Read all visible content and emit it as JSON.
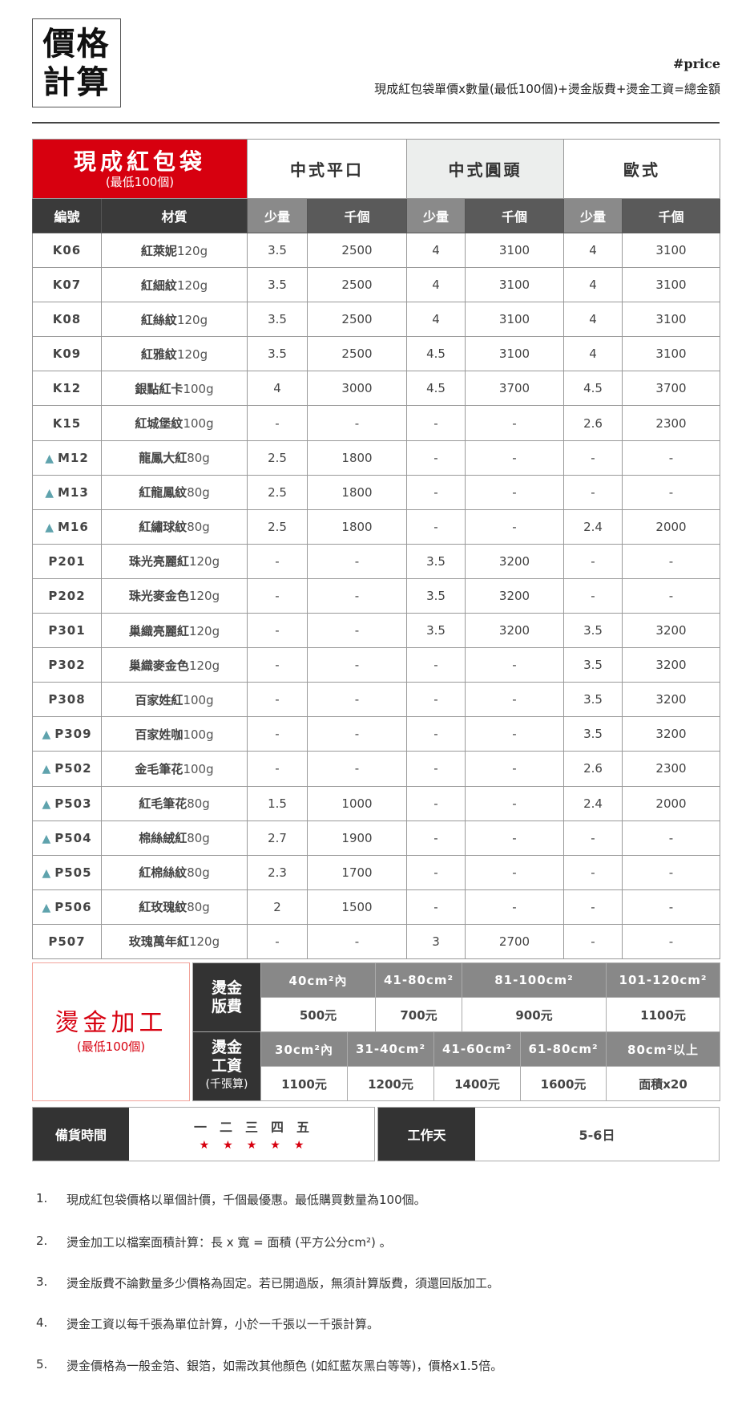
{
  "header": {
    "title_line1": "價格",
    "title_line2": "計算",
    "tag": "#price",
    "formula": "現成紅包袋單價x數量(最低100個)+燙金版費+燙金工資=總金額"
  },
  "price_table": {
    "product": "現成紅包袋",
    "product_min": "(最低100個)",
    "styles": [
      "中式平口",
      "中式圓頭",
      "歐式"
    ],
    "columns": {
      "code": "編號",
      "material": "材質",
      "small": "少量",
      "thousand": "千個"
    },
    "marker_color": "#5fa3ad",
    "rows": [
      {
        "code": "K06",
        "marked": false,
        "name": "紅萊妮",
        "weight": "120g",
        "v": [
          "3.5",
          "2500",
          "4",
          "3100",
          "4",
          "3100"
        ]
      },
      {
        "code": "K07",
        "marked": false,
        "name": "紅細紋",
        "weight": "120g",
        "v": [
          "3.5",
          "2500",
          "4",
          "3100",
          "4",
          "3100"
        ]
      },
      {
        "code": "K08",
        "marked": false,
        "name": "紅絲紋",
        "weight": "120g",
        "v": [
          "3.5",
          "2500",
          "4",
          "3100",
          "4",
          "3100"
        ]
      },
      {
        "code": "K09",
        "marked": false,
        "name": "紅雅紋",
        "weight": "120g",
        "v": [
          "3.5",
          "2500",
          "4.5",
          "3100",
          "4",
          "3100"
        ]
      },
      {
        "code": "K12",
        "marked": false,
        "name": "銀點紅卡",
        "weight": "100g",
        "v": [
          "4",
          "3000",
          "4.5",
          "3700",
          "4.5",
          "3700"
        ]
      },
      {
        "code": "K15",
        "marked": false,
        "name": "紅城堡紋",
        "weight": "100g",
        "v": [
          "-",
          "-",
          "-",
          "-",
          "2.6",
          "2300"
        ]
      },
      {
        "code": "M12",
        "marked": true,
        "name": "龍鳳大紅",
        "weight": "80g",
        "v": [
          "2.5",
          "1800",
          "-",
          "-",
          "-",
          "-"
        ]
      },
      {
        "code": "M13",
        "marked": true,
        "name": "紅龍鳳紋",
        "weight": "80g",
        "v": [
          "2.5",
          "1800",
          "-",
          "-",
          "-",
          "-"
        ]
      },
      {
        "code": "M16",
        "marked": true,
        "name": "紅繡球紋",
        "weight": "80g",
        "v": [
          "2.5",
          "1800",
          "-",
          "-",
          "2.4",
          "2000"
        ]
      },
      {
        "code": "P201",
        "marked": false,
        "name": "珠光亮麗紅",
        "weight": "120g",
        "v": [
          "-",
          "-",
          "3.5",
          "3200",
          "-",
          "-"
        ]
      },
      {
        "code": "P202",
        "marked": false,
        "name": "珠光麥金色",
        "weight": "120g",
        "v": [
          "-",
          "-",
          "3.5",
          "3200",
          "-",
          "-"
        ]
      },
      {
        "code": "P301",
        "marked": false,
        "name": "巢織亮麗紅",
        "weight": "120g",
        "v": [
          "-",
          "-",
          "3.5",
          "3200",
          "3.5",
          "3200"
        ]
      },
      {
        "code": "P302",
        "marked": false,
        "name": "巢織麥金色",
        "weight": "120g",
        "v": [
          "-",
          "-",
          "-",
          "-",
          "3.5",
          "3200"
        ]
      },
      {
        "code": "P308",
        "marked": false,
        "name": "百家姓紅",
        "weight": "100g",
        "v": [
          "-",
          "-",
          "-",
          "-",
          "3.5",
          "3200"
        ]
      },
      {
        "code": "P309",
        "marked": true,
        "name": "百家姓咖",
        "weight": "100g",
        "v": [
          "-",
          "-",
          "-",
          "-",
          "3.5",
          "3200"
        ]
      },
      {
        "code": "P502",
        "marked": true,
        "name": "金毛筆花",
        "weight": "100g",
        "v": [
          "-",
          "-",
          "-",
          "-",
          "2.6",
          "2300"
        ]
      },
      {
        "code": "P503",
        "marked": true,
        "name": "紅毛筆花",
        "weight": "80g",
        "v": [
          "1.5",
          "1000",
          "-",
          "-",
          "2.4",
          "2000"
        ]
      },
      {
        "code": "P504",
        "marked": true,
        "name": "棉絲絨紅",
        "weight": "80g",
        "v": [
          "2.7",
          "1900",
          "-",
          "-",
          "-",
          "-"
        ]
      },
      {
        "code": "P505",
        "marked": true,
        "name": "紅棉絲紋",
        "weight": "80g",
        "v": [
          "2.3",
          "1700",
          "-",
          "-",
          "-",
          "-"
        ]
      },
      {
        "code": "P506",
        "marked": true,
        "name": "紅玫瑰紋",
        "weight": "80g",
        "v": [
          "2",
          "1500",
          "-",
          "-",
          "-",
          "-"
        ]
      },
      {
        "code": "P507",
        "marked": false,
        "name": "玫瑰萬年紅",
        "weight": "120g",
        "v": [
          "-",
          "-",
          "3",
          "2700",
          "-",
          "-"
        ]
      }
    ]
  },
  "foil": {
    "title": "燙金加工",
    "min": "(最低100個)",
    "plate": {
      "label1": "燙金",
      "label2": "版費",
      "sizes": [
        "40cm²內",
        "41-80cm²",
        "81-100cm²",
        "101-120cm²"
      ],
      "prices": [
        "500元",
        "700元",
        "900元",
        "1100元"
      ]
    },
    "labor": {
      "label1": "燙金",
      "label2": "工資",
      "note": "(千張算)",
      "sizes": [
        "30cm²內",
        "31-40cm²",
        "41-60cm²",
        "61-80cm²",
        "80cm²以上"
      ],
      "prices": [
        "1100元",
        "1200元",
        "1400元",
        "1600元",
        "面積x20"
      ]
    }
  },
  "stock": {
    "label": "備貨時間",
    "days": [
      "一",
      "二",
      "三",
      "四",
      "五"
    ],
    "workday_label": "工作天",
    "workday_value": "5-6日"
  },
  "notes": [
    {
      "n": "1.",
      "text": "現成紅包袋價格以單個計價，千個最優惠。最低購買數量為100個。"
    },
    {
      "n": "2.",
      "text": "燙金加工以檔案面積計算：長 x 寬 = 面積 (平方公分cm²) 。"
    },
    {
      "n": "3.",
      "text": "燙金版費不論數量多少價格為固定。若已開過版，無須計算版費，須還回版加工。"
    },
    {
      "n": "4.",
      "text": "燙金工資以每千張為單位計算，小於一千張以一千張計算。"
    },
    {
      "n": "5.",
      "text": "燙金價格為一般金箔、銀箔，如需改其他顏色 (如紅藍灰黑白等等)，價格x1.5倍。"
    }
  ]
}
